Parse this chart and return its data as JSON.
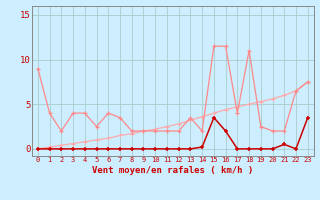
{
  "xlabel": "Vent moyen/en rafales ( km/h )",
  "background_color": "#cceeff",
  "grid_color": "#aacccc",
  "x_values": [
    0,
    1,
    2,
    3,
    4,
    5,
    6,
    7,
    8,
    9,
    10,
    11,
    12,
    13,
    14,
    15,
    16,
    17,
    18,
    19,
    20,
    21,
    22,
    23
  ],
  "rafales": [
    9.0,
    4.0,
    2.0,
    4.0,
    4.0,
    2.5,
    4.0,
    3.5,
    2.0,
    2.0,
    2.0,
    2.0,
    2.0,
    3.5,
    2.0,
    11.5,
    11.5,
    4.0,
    11.0,
    2.5,
    2.0,
    2.0,
    6.5,
    7.5
  ],
  "trend": [
    0.0,
    0.2,
    0.4,
    0.6,
    0.8,
    1.0,
    1.2,
    1.5,
    1.7,
    2.0,
    2.2,
    2.5,
    2.8,
    3.2,
    3.6,
    4.0,
    4.4,
    4.7,
    5.0,
    5.3,
    5.6,
    6.0,
    6.5,
    7.5
  ],
  "vent_moyen": [
    0.0,
    0.0,
    0.0,
    0.0,
    0.0,
    0.0,
    0.0,
    0.0,
    0.0,
    0.0,
    0.0,
    0.0,
    0.0,
    0.0,
    0.2,
    3.5,
    2.0,
    0.0,
    0.0,
    0.0,
    0.0,
    0.5,
    0.0,
    3.5
  ],
  "rafales_color": "#ff8888",
  "trend_color": "#ffaaaa",
  "vent_moyen_color": "#cc0000",
  "ylim": [
    -0.8,
    16
  ],
  "yticks": [
    0,
    5,
    10,
    15
  ],
  "xlim": [
    -0.5,
    23.5
  ]
}
